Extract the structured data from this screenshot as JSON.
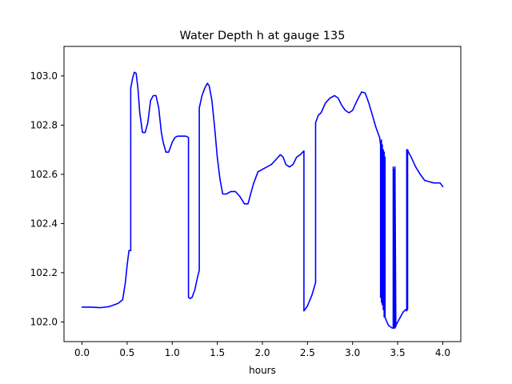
{
  "chart_data": {
    "type": "line",
    "title": "Water Depth h at gauge 135",
    "xlabel": "hours",
    "ylabel": "",
    "xlim": [
      -0.2,
      4.2
    ],
    "ylim": [
      101.92,
      103.12
    ],
    "xticks": [
      0.0,
      0.5,
      1.0,
      1.5,
      2.0,
      2.5,
      3.0,
      3.5,
      4.0
    ],
    "xtick_labels": [
      "0.0",
      "0.5",
      "1.0",
      "1.5",
      "2.0",
      "2.5",
      "3.0",
      "3.5",
      "4.0"
    ],
    "yticks": [
      102.0,
      102.2,
      102.4,
      102.6,
      102.8,
      103.0
    ],
    "ytick_labels": [
      "102.0",
      "102.2",
      "102.4",
      "102.6",
      "102.8",
      "103.0"
    ],
    "grid": false,
    "series": [
      {
        "color": "#0000ff",
        "x": [
          0.0,
          0.1,
          0.2,
          0.3,
          0.4,
          0.45,
          0.48,
          0.5,
          0.52,
          0.54,
          0.54,
          0.56,
          0.58,
          0.6,
          0.62,
          0.64,
          0.67,
          0.7,
          0.73,
          0.76,
          0.79,
          0.82,
          0.85,
          0.88,
          0.9,
          0.93,
          0.96,
          1.0,
          1.03,
          1.06,
          1.1,
          1.15,
          1.18,
          1.18,
          1.2,
          1.22,
          1.25,
          1.28,
          1.3,
          1.3,
          1.33,
          1.36,
          1.39,
          1.41,
          1.44,
          1.47,
          1.5,
          1.53,
          1.56,
          1.6,
          1.65,
          1.7,
          1.75,
          1.8,
          1.84,
          1.87,
          1.9,
          1.95,
          2.0,
          2.05,
          2.1,
          2.15,
          2.2,
          2.23,
          2.26,
          2.3,
          2.34,
          2.38,
          2.42,
          2.46,
          2.46,
          2.5,
          2.55,
          2.59,
          2.59,
          2.62,
          2.65,
          2.7,
          2.75,
          2.8,
          2.84,
          2.88,
          2.92,
          2.96,
          3.0,
          3.05,
          3.1,
          3.14,
          3.18,
          3.22,
          3.26,
          3.3,
          3.31,
          3.31,
          3.32,
          3.32,
          3.33,
          3.33,
          3.34,
          3.34,
          3.35,
          3.35,
          3.36,
          3.36,
          3.38,
          3.4,
          3.42,
          3.44,
          3.45,
          3.45,
          3.46,
          3.46,
          3.47,
          3.47,
          3.48,
          3.48,
          3.5,
          3.53,
          3.56,
          3.59,
          3.6,
          3.6,
          3.61,
          3.61,
          3.62,
          3.65,
          3.7,
          3.75,
          3.8,
          3.85,
          3.9,
          3.94,
          3.97,
          4.0
        ],
        "y": [
          102.06,
          102.06,
          102.058,
          102.062,
          102.075,
          102.09,
          102.16,
          102.23,
          102.29,
          102.29,
          102.95,
          102.99,
          103.015,
          103.01,
          102.95,
          102.85,
          102.77,
          102.77,
          102.81,
          102.9,
          102.92,
          102.92,
          102.87,
          102.77,
          102.73,
          102.69,
          102.69,
          102.73,
          102.75,
          102.755,
          102.755,
          102.755,
          102.75,
          102.1,
          102.095,
          102.1,
          102.13,
          102.18,
          102.21,
          102.87,
          102.92,
          102.95,
          102.97,
          102.96,
          102.9,
          102.79,
          102.67,
          102.58,
          102.52,
          102.52,
          102.53,
          102.53,
          102.51,
          102.48,
          102.48,
          102.52,
          102.56,
          102.61,
          102.62,
          102.63,
          102.64,
          102.66,
          102.68,
          102.67,
          102.64,
          102.63,
          102.64,
          102.67,
          102.68,
          102.695,
          102.045,
          102.065,
          102.11,
          102.16,
          102.81,
          102.84,
          102.85,
          102.89,
          102.91,
          102.92,
          102.91,
          102.88,
          102.86,
          102.85,
          102.86,
          102.9,
          102.935,
          102.93,
          102.89,
          102.84,
          102.79,
          102.75,
          102.72,
          102.1,
          102.74,
          102.08,
          102.72,
          102.07,
          102.7,
          102.05,
          102.69,
          102.02,
          102.67,
          102.02,
          102.0,
          101.985,
          101.98,
          101.975,
          101.975,
          102.63,
          101.975,
          102.62,
          101.975,
          102.63,
          101.98,
          101.985,
          102.0,
          102.02,
          102.04,
          102.05,
          102.045,
          102.7,
          102.05,
          102.7,
          102.69,
          102.67,
          102.63,
          102.6,
          102.575,
          102.57,
          102.565,
          102.565,
          102.565,
          102.55
        ]
      }
    ]
  }
}
